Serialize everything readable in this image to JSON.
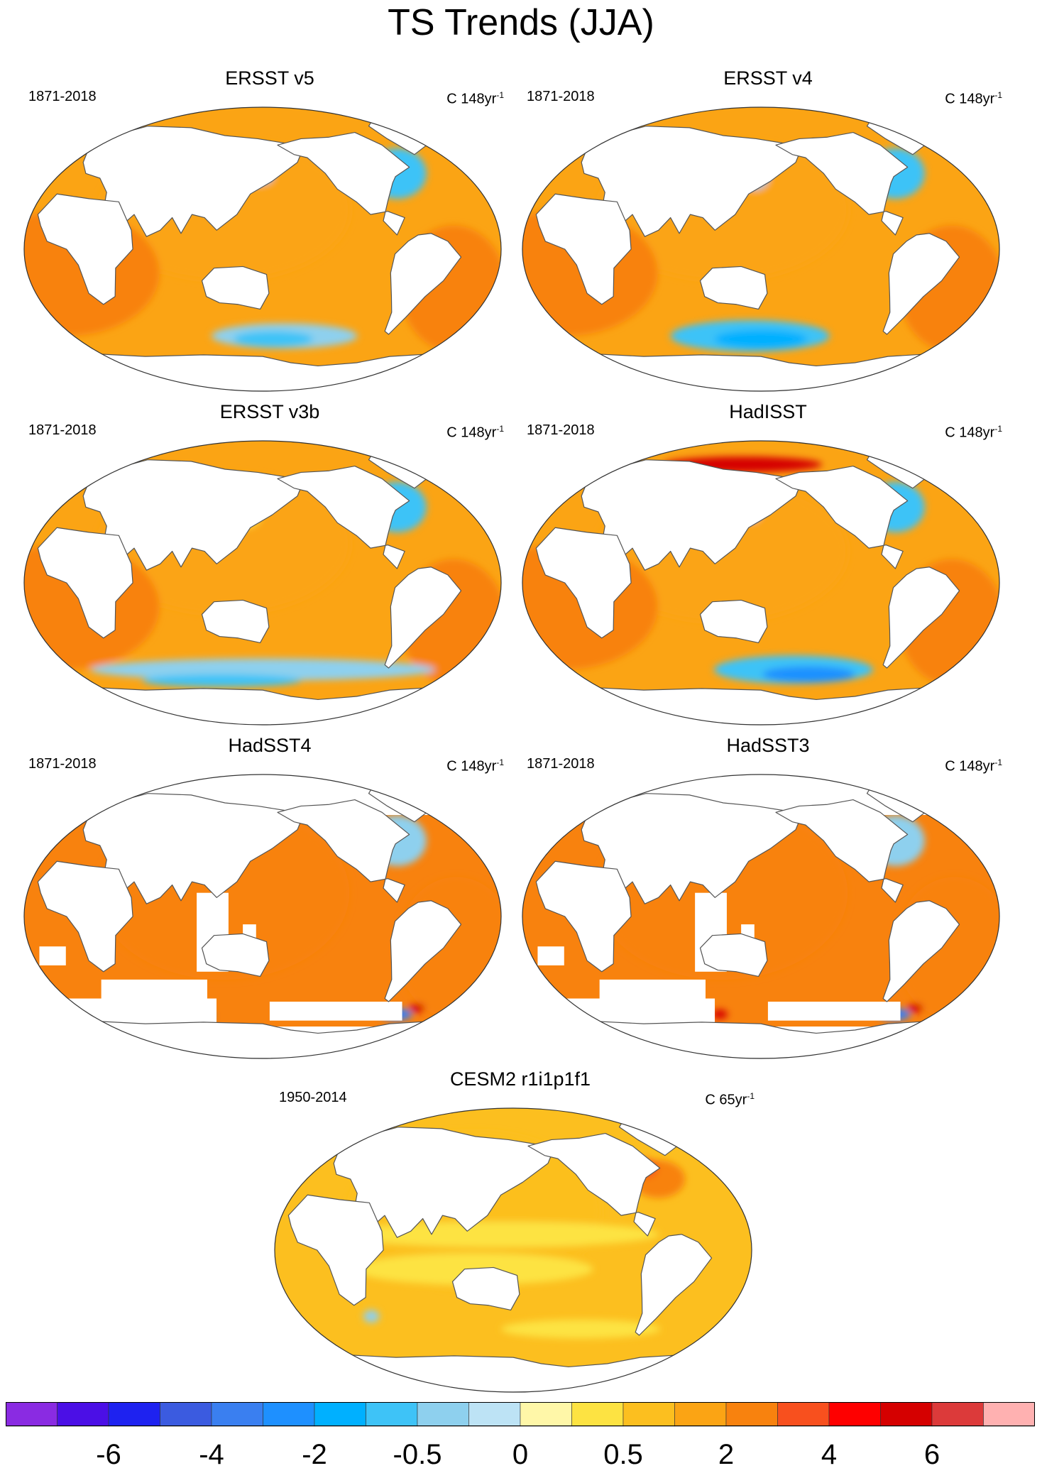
{
  "figure": {
    "title": "TS Trends (JJA)"
  },
  "chart_data": [
    {
      "type": "heatmap",
      "title": "ERSST v5",
      "period": "1871-2018",
      "units_prefix": "C 148yr",
      "units_exp": "-1",
      "projection": "Robinson (Pacific-centered)",
      "regions": [
        {
          "name": "Global ocean (majority)",
          "value": 1.0
        },
        {
          "name": "Indian & South Atlantic Ocean",
          "value": 2.0
        },
        {
          "name": "North Atlantic subpolar gyre",
          "value": -1.5
        },
        {
          "name": "Southern Ocean (south Pacific sector)",
          "value": -0.5
        },
        {
          "name": "Kuroshio extension spot",
          "value": -0.25
        },
        {
          "name": "Arctic margins",
          "value": 3.0
        }
      ]
    },
    {
      "type": "heatmap",
      "title": "ERSST v4",
      "period": "1871-2018",
      "units_prefix": "C 148yr",
      "units_exp": "-1",
      "projection": "Robinson (Pacific-centered)",
      "regions": [
        {
          "name": "Global ocean (majority)",
          "value": 1.0
        },
        {
          "name": "Indian & South Atlantic Ocean",
          "value": 2.0
        },
        {
          "name": "North Atlantic subpolar gyre",
          "value": -1.5
        },
        {
          "name": "Southern Ocean (south Pacific sector)",
          "value": -1.0
        },
        {
          "name": "North Pacific (Kuroshio) spot",
          "value": -0.5
        },
        {
          "name": "Arctic margins",
          "value": 3.0
        }
      ]
    },
    {
      "type": "heatmap",
      "title": "ERSST v3b",
      "period": "1871-2018",
      "units_prefix": "C 148yr",
      "units_exp": "-1",
      "projection": "Robinson (Pacific-centered)",
      "regions": [
        {
          "name": "Global ocean (majority)",
          "value": 1.0
        },
        {
          "name": "Indian & South Atlantic Ocean",
          "value": 2.0
        },
        {
          "name": "North Atlantic subpolar gyre",
          "value": -1.5
        },
        {
          "name": "Southern Ocean band",
          "value": -0.5
        },
        {
          "name": "North Pacific",
          "value": 0.4
        }
      ]
    },
    {
      "type": "heatmap",
      "title": "HadISST",
      "period": "1871-2018",
      "units_prefix": "C 148yr",
      "units_exp": "-1",
      "projection": "Robinson (Pacific-centered)",
      "regions": [
        {
          "name": "Global ocean (majority)",
          "value": 1.0
        },
        {
          "name": "Indian & South Atlantic Ocean",
          "value": 2.0
        },
        {
          "name": "North Atlantic subpolar gyre",
          "value": -1.5
        },
        {
          "name": "Southern Ocean (Pacific sector)",
          "value": -1.5
        },
        {
          "name": "Arctic margin (Pacific side)",
          "value": 5.0
        }
      ]
    },
    {
      "type": "heatmap",
      "title": "HadSST4",
      "period": "1871-2018",
      "units_prefix": "C 148yr",
      "units_exp": "-1",
      "projection": "Robinson (Pacific-centered)",
      "regions": [
        {
          "name": "Global ocean (majority)",
          "value": 2.0
        },
        {
          "name": "North Atlantic subpolar gyre",
          "value": -1.0
        },
        {
          "name": "Southern Ocean fringe",
          "value": -4.0
        },
        {
          "name": "Southern Ocean fringe (warm)",
          "value": 4.0
        },
        {
          "name": "Data gaps (no data)",
          "value": null
        }
      ]
    },
    {
      "type": "heatmap",
      "title": "HadSST3",
      "period": "1871-2018",
      "units_prefix": "C 148yr",
      "units_exp": "-1",
      "projection": "Robinson (Pacific-centered)",
      "regions": [
        {
          "name": "Global ocean (majority)",
          "value": 2.0
        },
        {
          "name": "North Atlantic subpolar gyre",
          "value": -1.0
        },
        {
          "name": "Southern Ocean fringe",
          "value": -4.0
        },
        {
          "name": "Southern Ocean fringe (warm)",
          "value": 4.0
        },
        {
          "name": "Data gaps (no data)",
          "value": null
        }
      ]
    },
    {
      "type": "heatmap",
      "title": "CESM2 r1i1p1f1",
      "period": "1950-2014",
      "units_prefix": "C 65yr",
      "units_exp": "-1",
      "projection": "Robinson (Pacific-centered)",
      "regions": [
        {
          "name": "Global ocean (majority)",
          "value": 0.75
        },
        {
          "name": "Tropical Pacific band",
          "value": 0.4
        },
        {
          "name": "North Atlantic",
          "value": 2.0
        },
        {
          "name": "South Indian spot",
          "value": -0.5
        }
      ]
    }
  ],
  "colorbar": {
    "colors": [
      "#8a2be2",
      "#4b0fe6",
      "#1e22f0",
      "#3b5be0",
      "#3a7ff0",
      "#1e90ff",
      "#00b0ff",
      "#3ec3f7",
      "#8ed0ee",
      "#bde3f5",
      "#fff7a8",
      "#fde342",
      "#fcbf1f",
      "#fba414",
      "#f8820e",
      "#f8501e",
      "#fe0000",
      "#d50000",
      "#dc3a3a",
      "#ffb1b1"
    ],
    "tick_labels": [
      {
        "text": "-6",
        "boundary": 2
      },
      {
        "text": "-4",
        "boundary": 4
      },
      {
        "text": "-2",
        "boundary": 6
      },
      {
        "text": "-0.5",
        "boundary": 8
      },
      {
        "text": "0",
        "boundary": 10
      },
      {
        "text": "0.5",
        "boundary": 12
      },
      {
        "text": "2",
        "boundary": 14
      },
      {
        "text": "4",
        "boundary": 16
      },
      {
        "text": "6",
        "boundary": 18
      }
    ]
  }
}
